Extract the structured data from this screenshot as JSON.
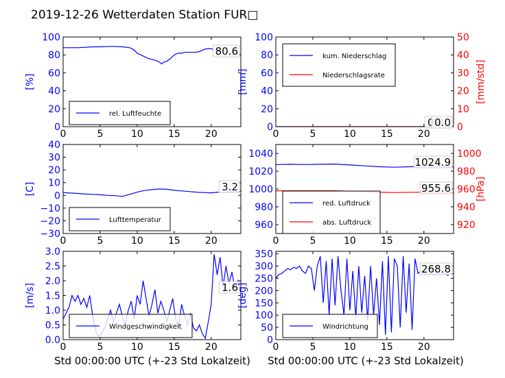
{
  "title": "2019-12-26 Wetterdaten Station FUR□",
  "xlabel": "Std 00:00:00 UTC (+-23 Std Lokalzeit)",
  "colors": {
    "primary": "#0000ff",
    "secondary": "#ff0000",
    "light": "#8080ff",
    "axis": "#000000"
  },
  "chart_data": [
    {
      "id": "humidity",
      "type": "line",
      "xlim": [
        0,
        24
      ],
      "ylim": [
        0,
        100
      ],
      "xticks": [
        "0",
        "5",
        "10",
        "15",
        "20"
      ],
      "xtick_values": [
        0,
        5,
        10,
        15,
        20
      ],
      "yticks": [
        "0",
        "20",
        "40",
        "60",
        "80",
        "100"
      ],
      "ytick_values": [
        0,
        20,
        40,
        60,
        80,
        100
      ],
      "ylabel": "[%]",
      "ylabel_color": "blue",
      "annotation": "80.6",
      "legend": "bottom-left",
      "series": [
        {
          "name": "rel. Luftfeuchte",
          "color": "#0000ff",
          "x": [
            0,
            1,
            2,
            3,
            4,
            5,
            6,
            7,
            8,
            9,
            9.5,
            10,
            10.5,
            11,
            11.5,
            12,
            12.5,
            13,
            13.3,
            13.6,
            14,
            14.5,
            15,
            15.5,
            16,
            16.5,
            17,
            17.5,
            18,
            18.5,
            19,
            19.5,
            20,
            20.5,
            21,
            21.5,
            22,
            23,
            24
          ],
          "y": [
            88,
            88,
            88,
            88.5,
            89,
            89,
            89.5,
            89.5,
            89,
            88,
            86,
            82,
            80,
            78,
            76,
            75,
            74,
            72,
            70,
            72,
            73,
            76,
            80,
            82,
            82,
            83,
            83,
            83,
            83,
            84,
            86,
            87,
            87,
            85,
            84,
            84,
            83,
            82,
            80
          ]
        }
      ]
    },
    {
      "id": "precipitation",
      "type": "line",
      "xlim": [
        0,
        24
      ],
      "ylim": [
        0,
        100
      ],
      "ylim_right": [
        0,
        50
      ],
      "xticks": [
        "0",
        "5",
        "10",
        "15",
        "20"
      ],
      "xtick_values": [
        0,
        5,
        10,
        15,
        20
      ],
      "yticks": [
        "0",
        "20",
        "40",
        "60",
        "80",
        "100"
      ],
      "ytick_values": [
        0,
        20,
        40,
        60,
        80,
        100
      ],
      "yticks_right": [
        "0",
        "10",
        "20",
        "30",
        "40",
        "50"
      ],
      "ytick_values_right": [
        0,
        10,
        20,
        30,
        40,
        50
      ],
      "ylabel": "[mm]",
      "ylabel_color": "blue",
      "ylabel_right": "[mm/std]",
      "ylabel_right_color": "red",
      "annotation_a": "0.0",
      "annotation_b": "0.0",
      "legend": "top-left",
      "series": [
        {
          "name": "kum. Niederschlag",
          "color": "#0000ff",
          "x": [
            0,
            24
          ],
          "y": [
            0,
            0
          ],
          "axis": "left"
        },
        {
          "name": "Niederschlagsrate",
          "color": "#ff0000",
          "x": [
            0,
            24
          ],
          "y": [
            0,
            0
          ],
          "axis": "right"
        }
      ]
    },
    {
      "id": "temperature",
      "type": "line",
      "xlim": [
        0,
        24
      ],
      "ylim": [
        -30,
        40
      ],
      "xticks": [
        "0",
        "5",
        "10",
        "15",
        "20"
      ],
      "xtick_values": [
        0,
        5,
        10,
        15,
        20
      ],
      "yticks": [
        "−30",
        "−20",
        "−10",
        "0",
        "10",
        "20",
        "30",
        "40"
      ],
      "ytick_values": [
        -30,
        -20,
        -10,
        0,
        10,
        20,
        30,
        40
      ],
      "ylabel": "[C]",
      "ylabel_color": "blue",
      "annotation": "3.2",
      "legend": "bottom-left",
      "series": [
        {
          "name": "Lufttemperatur",
          "color": "#0000ff",
          "x": [
            0,
            1,
            2,
            3,
            4,
            5,
            6,
            7,
            8,
            9,
            10,
            11,
            12,
            13,
            14,
            15,
            16,
            17,
            18,
            19,
            20,
            21,
            22,
            23,
            24
          ],
          "y": [
            2.2,
            1.8,
            1.5,
            1.0,
            0.8,
            0.5,
            0,
            -0.2,
            -0.8,
            0.8,
            2.5,
            3.8,
            4.5,
            5.0,
            4.8,
            4.0,
            3.5,
            3.0,
            2.5,
            2.2,
            2.0,
            2.5,
            2.8,
            3.0,
            3.2
          ]
        }
      ]
    },
    {
      "id": "pressure",
      "type": "line",
      "xlim": [
        0,
        24
      ],
      "ylim": [
        950,
        1050
      ],
      "ylim_right": [
        910,
        1010
      ],
      "xticks": [
        "0",
        "5",
        "10",
        "15",
        "20"
      ],
      "xtick_values": [
        0,
        5,
        10,
        15,
        20
      ],
      "yticks": [
        "960",
        "980",
        "1000",
        "1020",
        "1040"
      ],
      "ytick_values": [
        960,
        980,
        1000,
        1020,
        1040
      ],
      "yticks_right": [
        "920",
        "940",
        "960",
        "980",
        "1000"
      ],
      "ytick_values_right": [
        920,
        940,
        960,
        980,
        1000
      ],
      "ylabel_right": "[hPa]",
      "ylabel_right_color": "red",
      "annotation_a": "1024.9",
      "annotation_b": "955.6",
      "legend": "bottom-left",
      "series": [
        {
          "name": "red. Luftdruck",
          "color": "#0000ff",
          "axis": "left",
          "x": [
            0,
            2,
            4,
            6,
            8,
            10,
            12,
            14,
            16,
            18,
            20,
            22,
            24
          ],
          "y": [
            1027.5,
            1027.8,
            1027.5,
            1027.8,
            1028,
            1027,
            1026,
            1025,
            1024.5,
            1025,
            1025.5,
            1025.5,
            1024.9
          ]
        },
        {
          "name": "abs. Luftdruck",
          "color": "#ff0000",
          "axis": "right",
          "x": [
            0,
            2,
            4,
            6,
            8,
            10,
            12,
            14,
            16,
            18,
            20,
            22,
            24
          ],
          "y": [
            958,
            958,
            958,
            958,
            958,
            957.5,
            957,
            956.5,
            956,
            956.3,
            956.5,
            956.3,
            955.6
          ]
        }
      ]
    },
    {
      "id": "windspeed",
      "type": "line",
      "xlim": [
        0,
        24
      ],
      "ylim": [
        0,
        3.0
      ],
      "xticks": [
        "0",
        "5",
        "10",
        "15",
        "20"
      ],
      "xtick_values": [
        0,
        5,
        10,
        15,
        20
      ],
      "yticks": [
        "0.0",
        "0.5",
        "1.0",
        "1.5",
        "2.0",
        "2.5",
        "3.0"
      ],
      "ytick_values": [
        0,
        0.5,
        1.0,
        1.5,
        2.0,
        2.5,
        3.0
      ],
      "ylabel": "[m/s]",
      "ylabel_color": "blue",
      "annotation": "1.6",
      "legend": "bottom-left",
      "series": [
        {
          "name": "Windgeschwindigkeit",
          "color": "#0000ff",
          "x": [
            0,
            0.4,
            0.8,
            1.2,
            1.6,
            2.0,
            2.4,
            2.8,
            3.2,
            3.6,
            4.0,
            4.4,
            4.8,
            5.2,
            5.6,
            6.0,
            6.4,
            6.8,
            7.2,
            7.6,
            8.0,
            8.4,
            8.8,
            9.2,
            9.6,
            10.0,
            10.4,
            10.8,
            11.2,
            11.6,
            12.0,
            12.4,
            12.8,
            13.2,
            13.6,
            14.0,
            14.4,
            14.8,
            15.2,
            15.6,
            16.0,
            16.4,
            16.8,
            17.2,
            17.6,
            18.0,
            18.4,
            18.8,
            19.2,
            19.6,
            20.0,
            20.4,
            20.8,
            21.2,
            21.6,
            22.0,
            22.4,
            22.8,
            23.2,
            23.6,
            24.0
          ],
          "y": [
            0.7,
            0.9,
            1.1,
            1.5,
            1.3,
            1.5,
            1.2,
            1.4,
            1.1,
            1.5,
            0.8,
            0.3,
            0.1,
            0.2,
            0.4,
            0.7,
            1.0,
            0.6,
            0.9,
            1.2,
            0.8,
            0.5,
            1.0,
            1.3,
            0.7,
            1.5,
            1.2,
            2.0,
            1.4,
            0.8,
            1.2,
            1.7,
            0.9,
            1.3,
            1.0,
            0.6,
            1.0,
            1.4,
            0.7,
            0.4,
            1.2,
            0.8,
            0.5,
            0.9,
            0.4,
            0.3,
            0.5,
            0.2,
            0.05,
            0.6,
            1.2,
            2.9,
            2.2,
            2.8,
            1.8,
            2.5,
            1.9,
            2.3,
            1.7,
            2.0,
            1.6
          ]
        }
      ]
    },
    {
      "id": "winddirection",
      "type": "line",
      "xlim": [
        0,
        24
      ],
      "ylim": [
        0,
        360
      ],
      "xticks": [
        "0",
        "5",
        "10",
        "15",
        "20"
      ],
      "xtick_values": [
        0,
        5,
        10,
        15,
        20
      ],
      "yticks": [
        "0",
        "50",
        "100",
        "150",
        "200",
        "250",
        "300",
        "350"
      ],
      "ytick_values": [
        0,
        50,
        100,
        150,
        200,
        250,
        300,
        350
      ],
      "ylabel": "[deg]",
      "ylabel_color": "blue",
      "annotation": "268.8",
      "legend": "bottom-left",
      "series": [
        {
          "name": "Windrichtung",
          "color": "#0000ff",
          "x": [
            0,
            0.4,
            0.8,
            1.2,
            1.6,
            2.0,
            2.4,
            2.8,
            3.2,
            3.6,
            4.0,
            4.4,
            4.8,
            5.2,
            5.6,
            6.0,
            6.4,
            6.8,
            7.2,
            7.6,
            8.0,
            8.4,
            8.8,
            9.2,
            9.6,
            10.0,
            10.4,
            10.8,
            11.2,
            11.6,
            12.0,
            12.4,
            12.8,
            13.2,
            13.6,
            14.0,
            14.4,
            14.8,
            15.2,
            15.6,
            16.0,
            16.4,
            16.8,
            17.2,
            17.6,
            18.0,
            18.4,
            18.8,
            19.2,
            19.6,
            20.0,
            20.4,
            20.8,
            21.2,
            21.6,
            22.0,
            22.4,
            22.8,
            23.2,
            23.6,
            24.0
          ],
          "y": [
            250,
            265,
            270,
            280,
            290,
            285,
            295,
            290,
            300,
            280,
            270,
            300,
            290,
            200,
            300,
            340,
            150,
            320,
            100,
            330,
            140,
            340,
            200,
            100,
            330,
            120,
            280,
            90,
            300,
            110,
            260,
            80,
            300,
            100,
            250,
            60,
            320,
            20,
            340,
            30,
            330,
            300,
            50,
            340,
            110,
            310,
            40,
            330,
            270,
            280,
            270,
            265,
            270,
            268,
            265,
            270,
            272,
            268,
            262,
            268,
            268.8
          ]
        }
      ]
    }
  ]
}
